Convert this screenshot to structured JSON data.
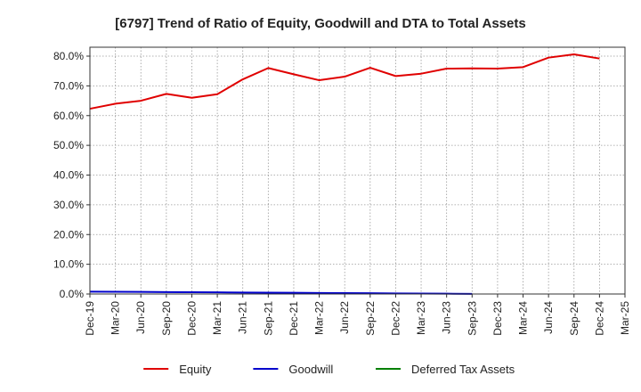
{
  "chart_data": {
    "type": "line",
    "title": "[6797]  Trend of Ratio of Equity, Goodwill and DTA to Total Assets",
    "xlabel": "",
    "ylabel": "",
    "x_ticks": [
      "Dec-19",
      "Mar-20",
      "Jun-20",
      "Sep-20",
      "Dec-20",
      "Mar-21",
      "Jun-21",
      "Sep-21",
      "Dec-21",
      "Mar-22",
      "Jun-22",
      "Sep-22",
      "Dec-22",
      "Mar-23",
      "Jun-23",
      "Sep-23",
      "Dec-23",
      "Mar-24",
      "Jun-24",
      "Sep-24",
      "Dec-24",
      "Mar-25"
    ],
    "y_ticks": [
      "0.0%",
      "10.0%",
      "20.0%",
      "30.0%",
      "40.0%",
      "50.0%",
      "60.0%",
      "70.0%",
      "80.0%"
    ],
    "ylim": [
      0,
      83
    ],
    "y_unit": "%",
    "grid": true,
    "legend_position": "bottom",
    "series": [
      {
        "name": "Equity",
        "color": "#e00000",
        "values": [
          62.3,
          64.0,
          65.0,
          67.3,
          66.0,
          67.2,
          72.2,
          76.0,
          73.9,
          71.9,
          73.1,
          76.1,
          73.3,
          74.1,
          75.8,
          75.9,
          75.8,
          76.3,
          79.5,
          80.6,
          79.2
        ]
      },
      {
        "name": "Goodwill",
        "color": "#0000cc",
        "values": [
          0.8,
          0.75,
          0.7,
          0.65,
          0.6,
          0.55,
          0.5,
          0.45,
          0.4,
          0.35,
          0.3,
          0.25,
          0.2,
          0.15,
          0.1,
          0.05
        ]
      },
      {
        "name": "Deferred Tax Assets",
        "color": "#008000",
        "values": []
      }
    ]
  }
}
